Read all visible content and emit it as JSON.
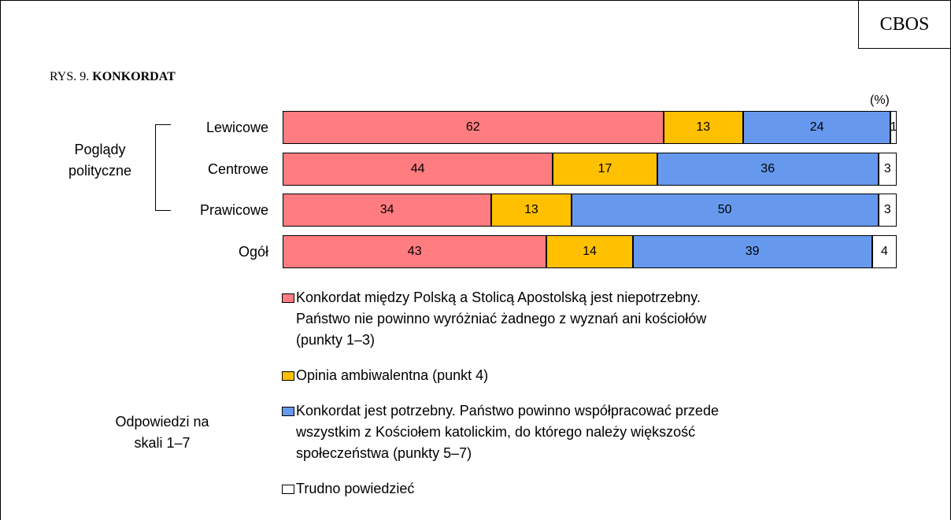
{
  "chart_data": {
    "type": "bar",
    "orientation": "horizontal",
    "stacked": true,
    "source": "CBOS",
    "figure_label": "RYS. 9.",
    "title": "KONKORDAT",
    "unit": "(%)",
    "group_label": "Poglądy polityczne",
    "legend_title": "Odpowiedzi na skali 1–7",
    "categories": [
      "Lewicowe",
      "Centrowe",
      "Prawicowe",
      "Ogół"
    ],
    "series": [
      {
        "name": "Konkordat między Polską a  Stolicą Apostolską jest niepotrzebny.\nPaństwo nie powinno wyróżniać żadnego z wyznań ani kościołów\n(punkty 1–3)",
        "color": "#ff7c80",
        "values": [
          62,
          44,
          34,
          43
        ]
      },
      {
        "name": "Opinia ambiwalentna (punkt 4)",
        "color": "#ffc000",
        "values": [
          13,
          17,
          13,
          14
        ]
      },
      {
        "name": "Konkordat jest potrzebny. Państwo powinno współpracować przede\nwszystkim z Kościołem katolickim, do którego należy większość\nspołeczeństwa (punkty 5–7)",
        "color": "#6699ee",
        "values": [
          24,
          36,
          50,
          39
        ]
      },
      {
        "name": "Trudno powiedzieć",
        "color": "#ffffff",
        "values": [
          1,
          3,
          3,
          4
        ]
      }
    ]
  }
}
